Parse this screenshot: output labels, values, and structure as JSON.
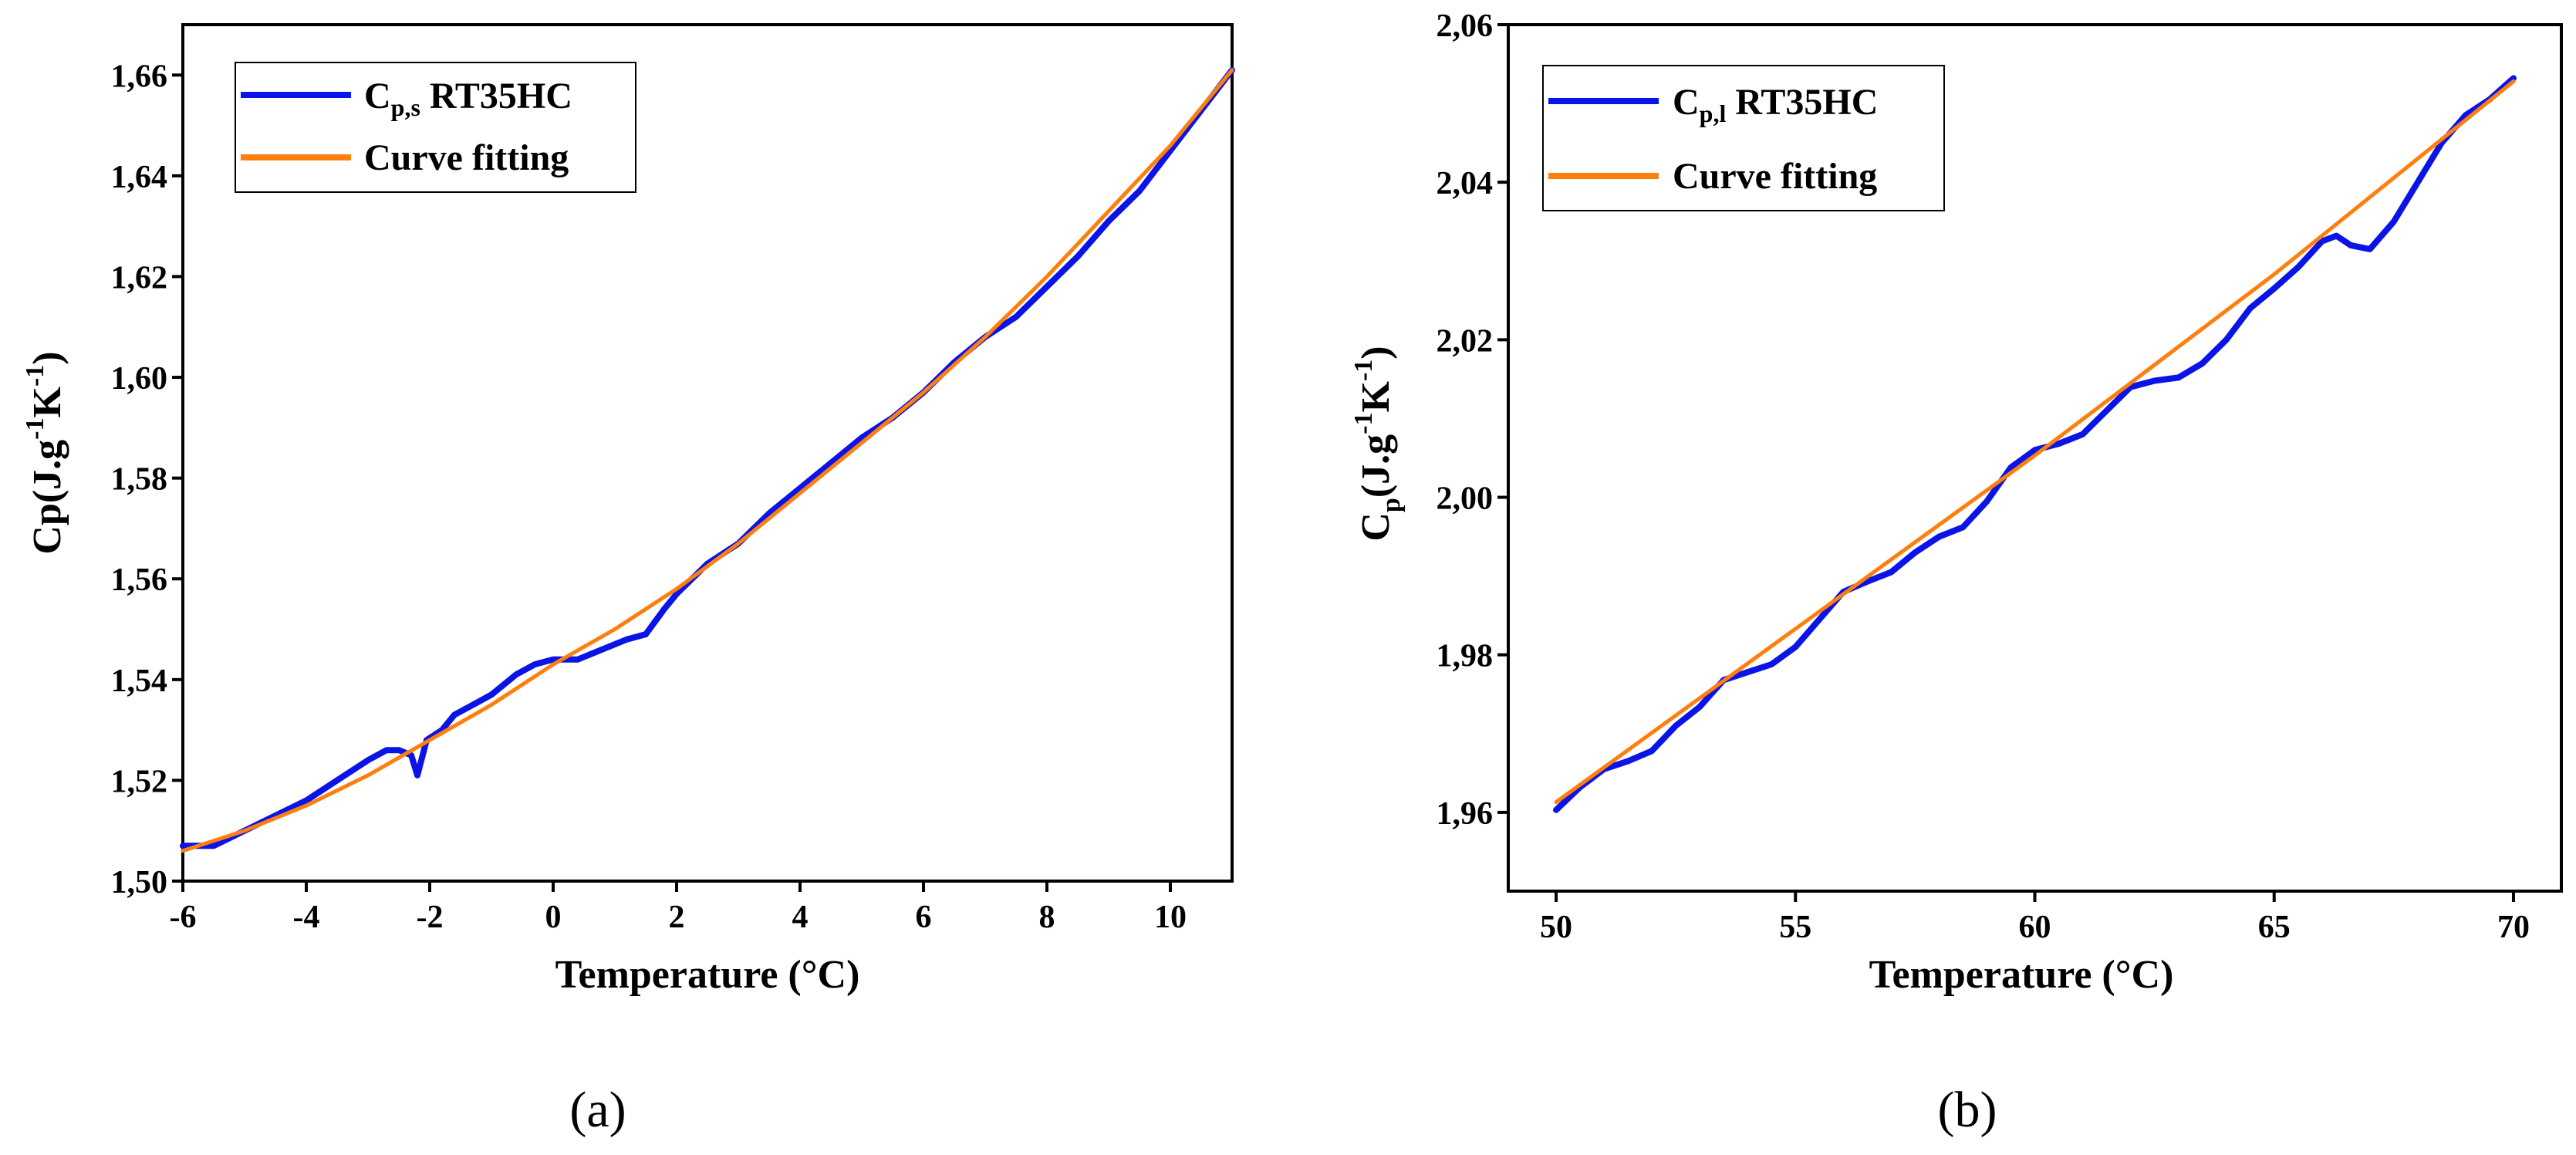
{
  "colors": {
    "measured": "#0a14e6",
    "fit": "#ff7f0e"
  },
  "chart_data": [
    {
      "type": "line",
      "panel_label": "(a)",
      "xlabel": "Temperature (°C)",
      "ylabel": "Cp(J.g-1K-1)",
      "ylabel_parts": [
        "Cp(J.g",
        "-1",
        "K",
        "-1",
        ")"
      ],
      "xlim": [
        -6,
        11
      ],
      "ylim": [
        1.5,
        1.67
      ],
      "xticks": [
        -6,
        -4,
        -2,
        0,
        2,
        4,
        6,
        8,
        10
      ],
      "xtick_labels": [
        "-6",
        "-4",
        "-2",
        "0",
        "2",
        "4",
        "6",
        "8",
        "10"
      ],
      "yticks": [
        1.5,
        1.52,
        1.54,
        1.56,
        1.58,
        1.6,
        1.62,
        1.64,
        1.66
      ],
      "ytick_labels": [
        "1,50",
        "1,52",
        "1,54",
        "1,56",
        "1,58",
        "1,60",
        "1,62",
        "1,64",
        "1,66"
      ],
      "legend_position": "top-left",
      "series": [
        {
          "name": "Cp,s RT35HC",
          "legend_parts": [
            "C",
            "p,s",
            " RT35HC"
          ],
          "color_key": "measured",
          "x": [
            -6.0,
            -5.5,
            -5.0,
            -4.5,
            -4.0,
            -3.5,
            -3.0,
            -2.7,
            -2.5,
            -2.3,
            -2.2,
            -2.05,
            -1.8,
            -1.6,
            -1.3,
            -1.0,
            -0.6,
            -0.3,
            0.0,
            0.4,
            0.8,
            1.2,
            1.5,
            1.8,
            2.0,
            2.5,
            3.0,
            3.5,
            4.0,
            4.5,
            5.0,
            5.5,
            6.0,
            6.5,
            7.0,
            7.5,
            8.0,
            8.5,
            9.0,
            9.5,
            10.0,
            10.5,
            11.0
          ],
          "y": [
            1.507,
            1.507,
            1.51,
            1.513,
            1.516,
            1.52,
            1.524,
            1.526,
            1.526,
            1.525,
            1.521,
            1.528,
            1.53,
            1.533,
            1.535,
            1.537,
            1.541,
            1.543,
            1.544,
            1.544,
            1.546,
            1.548,
            1.549,
            1.554,
            1.557,
            1.563,
            1.567,
            1.573,
            1.578,
            1.583,
            1.588,
            1.592,
            1.597,
            1.603,
            1.608,
            1.612,
            1.618,
            1.624,
            1.631,
            1.637,
            1.645,
            1.653,
            1.661
          ]
        },
        {
          "name": "Curve fitting",
          "color_key": "fit",
          "x": [
            -6.0,
            -5.0,
            -4.0,
            -3.0,
            -2.0,
            -1.0,
            0.0,
            1.0,
            2.0,
            3.0,
            4.0,
            5.0,
            6.0,
            7.0,
            8.0,
            9.0,
            10.0,
            11.0
          ],
          "y": [
            1.506,
            1.51,
            1.515,
            1.521,
            1.528,
            1.535,
            1.543,
            1.55,
            1.558,
            1.567,
            1.577,
            1.587,
            1.597,
            1.608,
            1.62,
            1.633,
            1.646,
            1.661
          ]
        }
      ]
    },
    {
      "type": "line",
      "panel_label": "(b)",
      "xlabel": "Temperature (°C)",
      "ylabel": "Cp(J.g-1K-1)",
      "ylabel_parts": [
        "C",
        "p",
        "(J.g",
        "-1",
        "K",
        "-1",
        ")"
      ],
      "xlim": [
        49,
        71
      ],
      "ylim": [
        1.95,
        2.06
      ],
      "xticks": [
        50,
        55,
        60,
        65,
        70
      ],
      "xtick_labels": [
        "50",
        "55",
        "60",
        "65",
        "70"
      ],
      "yticks": [
        1.96,
        1.98,
        2.0,
        2.02,
        2.04,
        2.06
      ],
      "ytick_labels": [
        "1,96",
        "1,98",
        "2,00",
        "2,02",
        "2,04",
        "2,06"
      ],
      "legend_position": "top-left",
      "series": [
        {
          "name": "Cp,l RT35HC",
          "legend_parts": [
            "C",
            "p,l",
            " RT35HC"
          ],
          "color_key": "measured",
          "x": [
            50.0,
            50.5,
            51.0,
            51.5,
            52.0,
            52.5,
            53.0,
            53.5,
            54.0,
            54.5,
            55.0,
            55.5,
            56.0,
            56.5,
            57.0,
            57.5,
            58.0,
            58.5,
            59.0,
            59.5,
            60.0,
            60.5,
            61.0,
            61.5,
            62.0,
            62.5,
            63.0,
            63.5,
            64.0,
            64.5,
            65.0,
            65.5,
            66.0,
            66.3,
            66.6,
            67.0,
            67.5,
            68.0,
            68.5,
            69.0,
            69.5,
            70.0
          ],
          "y": [
            1.9603,
            1.9632,
            1.9655,
            1.9665,
            1.9678,
            1.971,
            1.9734,
            1.9768,
            1.9778,
            1.9788,
            1.981,
            1.9845,
            1.988,
            1.9893,
            1.9905,
            1.993,
            1.995,
            1.9962,
            1.9995,
            2.0038,
            2.006,
            2.0068,
            2.008,
            2.011,
            2.014,
            2.0148,
            2.0152,
            2.017,
            2.02,
            2.024,
            2.0265,
            2.0292,
            2.0325,
            2.0332,
            2.032,
            2.0315,
            2.035,
            2.04,
            2.045,
            2.0485,
            2.0505,
            2.0532
          ]
        },
        {
          "name": "Curve fitting",
          "color_key": "fit",
          "x": [
            50.0,
            55.0,
            60.0,
            65.0,
            70.0
          ],
          "y": [
            1.9613,
            1.9833,
            2.0053,
            2.0283,
            2.0528
          ]
        }
      ]
    }
  ]
}
